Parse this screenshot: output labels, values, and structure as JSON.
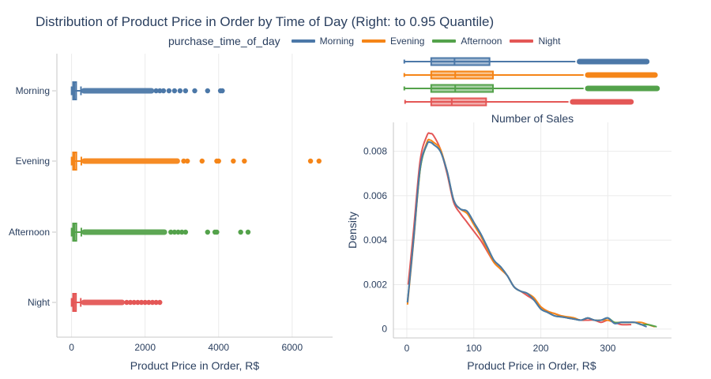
{
  "title": "Distribution of Product Price in Order by Time of Day (Right: to 0.95 Quantile)",
  "legend": {
    "title": "purchase_time_of_day",
    "items": [
      {
        "label": "Morning",
        "color": "#4c78a8"
      },
      {
        "label": "Evening",
        "color": "#f58518"
      },
      {
        "label": "Afternoon",
        "color": "#54a24b"
      },
      {
        "label": "Night",
        "color": "#e45756"
      }
    ]
  },
  "chart_data": [
    {
      "type": "box",
      "orientation": "horizontal",
      "xlabel": "Product Price in Order, R$",
      "xlim": [
        -400,
        7100
      ],
      "xticks": [
        0,
        2000,
        4000,
        6000
      ],
      "categories": [
        "Morning",
        "Evening",
        "Afternoon",
        "Night"
      ],
      "series": [
        {
          "name": "Morning",
          "color": "#4c78a8",
          "q1": 40,
          "median": 75,
          "q3": 125,
          "lower_fence": 0.85,
          "upper_fence": 255,
          "outlier_dense_range": [
            260,
            2250
          ],
          "outliers": [
            2300,
            2400,
            2500,
            2650,
            2800,
            2950,
            3100,
            3350,
            3700,
            4050,
            4100
          ]
        },
        {
          "name": "Evening",
          "color": "#f58518",
          "q1": 40,
          "median": 75,
          "q3": 130,
          "lower_fence": 0.85,
          "upper_fence": 265,
          "outlier_dense_range": [
            270,
            2950
          ],
          "outliers": [
            3050,
            3150,
            3550,
            3950,
            4000,
            4400,
            4700,
            6500,
            6730
          ]
        },
        {
          "name": "Afternoon",
          "color": "#54a24b",
          "q1": 40,
          "median": 75,
          "q3": 130,
          "lower_fence": 0.85,
          "upper_fence": 265,
          "outlier_dense_range": [
            270,
            2600
          ],
          "outliers": [
            2700,
            2800,
            2900,
            3000,
            3100,
            3700,
            3900,
            3950,
            4600,
            4800
          ]
        },
        {
          "name": "Night",
          "color": "#e45756",
          "q1": 40,
          "median": 70,
          "q3": 120,
          "lower_fence": 0.85,
          "upper_fence": 250,
          "outlier_dense_range": [
            260,
            1450
          ],
          "outliers": [
            1500,
            1600,
            1700,
            1800,
            1900,
            2000,
            2100,
            2200,
            2300,
            2400
          ]
        }
      ]
    },
    {
      "type": "box",
      "orientation": "horizontal",
      "subplot": "marginal",
      "xlim": [
        -15,
        390
      ],
      "series": [
        {
          "name": "Morning",
          "color": "#4c78a8",
          "lower_fence": 0.85,
          "q1": 40,
          "median": 74,
          "q3": 125,
          "upper_fence": 250,
          "outlier_range": [
            252,
            358
          ]
        },
        {
          "name": "Evening",
          "color": "#f58518",
          "lower_fence": 0.85,
          "q1": 40,
          "median": 75,
          "q3": 130,
          "upper_fence": 262,
          "outlier_range": [
            264,
            370
          ]
        },
        {
          "name": "Afternoon",
          "color": "#54a24b",
          "lower_fence": 0.85,
          "q1": 40,
          "median": 75,
          "q3": 130,
          "upper_fence": 262,
          "outlier_range": [
            264,
            373
          ]
        },
        {
          "name": "Night",
          "color": "#e45756",
          "lower_fence": 2,
          "q1": 40,
          "median": 70,
          "q3": 120,
          "upper_fence": 240,
          "outlier_range": [
            242,
            335
          ]
        }
      ]
    },
    {
      "type": "line",
      "subtitle": "Number of Sales",
      "xlabel": "Product Price in Order, R$",
      "ylabel": "Density",
      "xlim": [
        -20,
        395
      ],
      "ylim": [
        -0.0004,
        0.0093
      ],
      "xticks": [
        0,
        100,
        200,
        300
      ],
      "yticks": [
        0,
        0.002,
        0.004,
        0.006,
        0.008
      ],
      "ytick_labels": [
        "0",
        "0.002",
        "0.004",
        "0.006",
        "0.008"
      ],
      "grid": true,
      "series": [
        {
          "name": "Morning",
          "color": "#4c78a8",
          "x": [
            1,
            10,
            20,
            30,
            35,
            40,
            50,
            60,
            70,
            80,
            90,
            100,
            110,
            120,
            130,
            140,
            150,
            160,
            170,
            180,
            190,
            200,
            210,
            220,
            230,
            240,
            250,
            260,
            270,
            280,
            290,
            300,
            310,
            320,
            330,
            340,
            350,
            358
          ],
          "y": [
            0.0012,
            0.004,
            0.0073,
            0.0083,
            0.0084,
            0.0083,
            0.008,
            0.0071,
            0.0058,
            0.0054,
            0.0053,
            0.0048,
            0.0043,
            0.0037,
            0.0031,
            0.0028,
            0.0024,
            0.0019,
            0.0017,
            0.0016,
            0.0013,
            0.0009,
            0.00075,
            0.0006,
            0.00055,
            0.0005,
            0.00045,
            0.0004,
            0.0005,
            0.0004,
            0.0004,
            0.0005,
            0.00025,
            0.0003,
            0.0003,
            0.0003,
            0.0002,
            0.0001
          ]
        },
        {
          "name": "Evening",
          "color": "#f58518",
          "x": [
            1,
            10,
            20,
            30,
            35,
            40,
            50,
            60,
            70,
            80,
            90,
            100,
            110,
            120,
            130,
            140,
            150,
            160,
            170,
            180,
            190,
            200,
            210,
            220,
            230,
            240,
            250,
            260,
            270,
            280,
            290,
            300,
            310,
            320,
            330,
            340,
            350,
            360,
            370
          ],
          "y": [
            0.0011,
            0.0039,
            0.0072,
            0.0084,
            0.0085,
            0.0084,
            0.0081,
            0.0071,
            0.0058,
            0.0054,
            0.0052,
            0.0047,
            0.0042,
            0.0036,
            0.003,
            0.0027,
            0.0024,
            0.0019,
            0.0017,
            0.0016,
            0.0014,
            0.001,
            0.0008,
            0.0007,
            0.0006,
            0.00055,
            0.0005,
            0.0004,
            0.0005,
            0.0004,
            0.0004,
            0.0004,
            0.0003,
            0.0003,
            0.0003,
            0.0003,
            0.0003,
            0.0002,
            0.0001
          ]
        },
        {
          "name": "Afternoon",
          "color": "#54a24b",
          "x": [
            1,
            10,
            20,
            30,
            35,
            40,
            50,
            60,
            70,
            80,
            90,
            100,
            110,
            120,
            130,
            140,
            150,
            160,
            170,
            180,
            190,
            200,
            210,
            220,
            230,
            240,
            250,
            260,
            270,
            280,
            290,
            300,
            310,
            320,
            330,
            340,
            350,
            360,
            373
          ],
          "y": [
            0.0012,
            0.004,
            0.0072,
            0.0083,
            0.0084,
            0.0083,
            0.008,
            0.0071,
            0.0058,
            0.0054,
            0.0053,
            0.0048,
            0.0043,
            0.0037,
            0.0031,
            0.0028,
            0.0024,
            0.0019,
            0.0017,
            0.0016,
            0.0013,
            0.0009,
            0.00075,
            0.0006,
            0.00055,
            0.0005,
            0.00045,
            0.0004,
            0.0005,
            0.0004,
            0.0004,
            0.0005,
            0.0003,
            0.0003,
            0.0003,
            0.0003,
            0.0002,
            0.0002,
            0.0001
          ]
        },
        {
          "name": "Night",
          "color": "#e45756",
          "x": [
            2,
            10,
            20,
            30,
            35,
            40,
            50,
            60,
            70,
            80,
            90,
            100,
            110,
            120,
            130,
            140,
            150,
            160,
            170,
            180,
            190,
            200,
            210,
            220,
            230,
            240,
            250,
            260,
            270,
            280,
            290,
            300,
            310,
            320,
            335
          ],
          "y": [
            0.002,
            0.0044,
            0.0076,
            0.0087,
            0.0088,
            0.0087,
            0.0081,
            0.007,
            0.0057,
            0.0052,
            0.0048,
            0.0044,
            0.004,
            0.0035,
            0.003,
            0.0027,
            0.0024,
            0.0019,
            0.0017,
            0.0015,
            0.0013,
            0.001,
            0.0008,
            0.0007,
            0.0006,
            0.0005,
            0.00045,
            0.0004,
            0.0004,
            0.0004,
            0.0003,
            0.0004,
            0.0003,
            0.0002,
            0.0002
          ]
        }
      ]
    }
  ]
}
